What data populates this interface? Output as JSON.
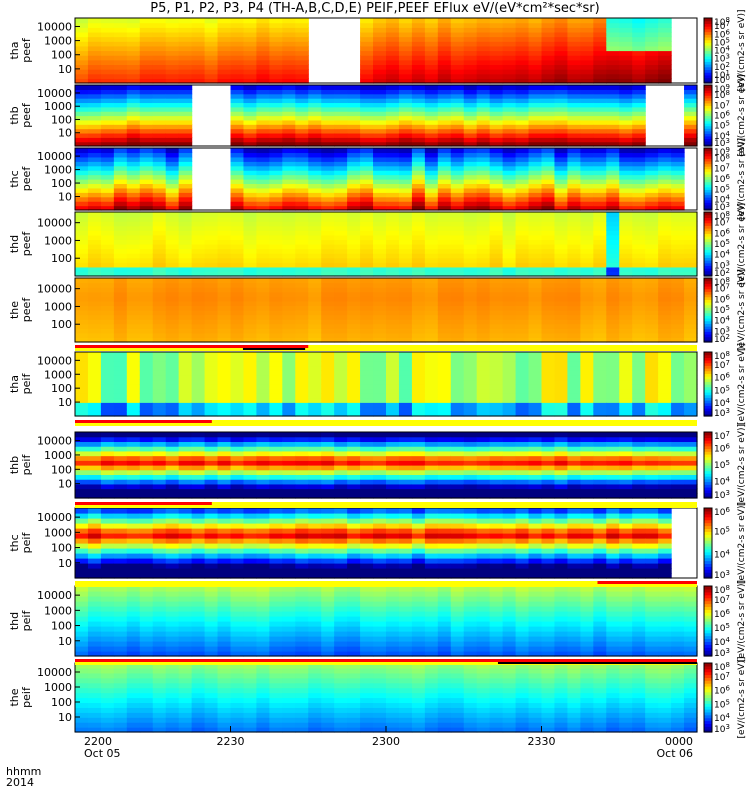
{
  "chart_data": {
    "type": "heatmap",
    "title": "P5, P1, P2, P3, P4 (TH-A,B,C,D,E) PEIF,PEEF EFlux eV/(eV*cm²*sec*sr)",
    "colorbar_label": "[eV/(cm2-s sr eV)]",
    "x_ticks": [
      "2200",
      "2230",
      "2300",
      "2330",
      "0000"
    ],
    "x_tick_dates": [
      "Oct 05",
      "",
      "",
      "",
      "Oct 06"
    ],
    "x_axis_label_line1": "hhmm",
    "x_axis_label_line2": "2014",
    "panels": [
      {
        "probe": "tha",
        "quantity": "peef",
        "yticks": [
          "10",
          "100",
          "1000",
          "10000"
        ],
        "cb_min_exp": 0,
        "cb_max_exp": 8,
        "gaps": [
          [
            0.37,
            0.45
          ],
          [
            0.96,
            1.0
          ]
        ],
        "mode": "elec_a"
      },
      {
        "probe": "thb",
        "quantity": "peef",
        "yticks": [
          "10",
          "100",
          "1000",
          "10000"
        ],
        "cb_min_exp": 3,
        "cb_max_exp": 9,
        "gaps": [
          [
            0.18,
            0.26
          ],
          [
            0.92,
            0.98
          ]
        ],
        "mode": "elec_b"
      },
      {
        "probe": "thc",
        "quantity": "peef",
        "yticks": [
          "10",
          "100",
          "1000",
          "10000"
        ],
        "cb_min_exp": 3,
        "cb_max_exp": 9,
        "gaps": [
          [
            0.18,
            0.26
          ],
          [
            0.98,
            1.0
          ]
        ],
        "mode": "elec_c"
      },
      {
        "probe": "thd",
        "quantity": "peef",
        "yticks": [
          "100",
          "1000",
          "10000"
        ],
        "cb_min_exp": 2,
        "cb_max_exp": 8,
        "gaps": [],
        "mode": "elec_d"
      },
      {
        "probe": "the",
        "quantity": "peef",
        "yticks": [
          "100",
          "1000",
          "10000"
        ],
        "cb_min_exp": 2,
        "cb_max_exp": 8,
        "gaps": [],
        "mode": "elec_e"
      },
      {
        "probe": "tha",
        "quantity": "peif",
        "yticks": [
          "10",
          "100",
          "1000",
          "10000"
        ],
        "cb_min_exp": 3,
        "cb_max_exp": 8,
        "gaps": [],
        "mode": "ion_a"
      },
      {
        "probe": "thb",
        "quantity": "peif",
        "yticks": [
          "10",
          "100",
          "1000",
          "10000"
        ],
        "cb_min_exp": 3,
        "cb_max_exp": 7,
        "gaps": [],
        "mode": "ion_b"
      },
      {
        "probe": "thc",
        "quantity": "peif",
        "yticks": [
          "10",
          "100",
          "1000",
          "10000"
        ],
        "cb_min_exp": 3,
        "cb_max_exp": 6,
        "gaps": [
          [
            0.96,
            1.0
          ]
        ],
        "mode": "ion_c"
      },
      {
        "probe": "thd",
        "quantity": "peif",
        "yticks": [
          "10",
          "100",
          "1000",
          "10000"
        ],
        "cb_min_exp": 3,
        "cb_max_exp": 8,
        "gaps": [],
        "mode": "ion_d"
      },
      {
        "probe": "the",
        "quantity": "peif",
        "yticks": [
          "10",
          "100",
          "1000",
          "10000"
        ],
        "cb_min_exp": 3,
        "cb_max_exp": 8,
        "gaps": [],
        "mode": "ion_e"
      }
    ],
    "mode_bars": [
      {
        "red": [
          0.0,
          0.375
        ],
        "dark": [
          0.27,
          0.37
        ]
      },
      {
        "red": [
          0.0,
          0.22
        ],
        "dark": []
      },
      {
        "red": [
          0.0,
          0.22
        ],
        "dark": []
      },
      {
        "red": [
          0.84,
          1.0
        ],
        "dark": []
      },
      {
        "red": [
          0.0,
          1.0
        ],
        "dark": [
          0.68,
          1.0
        ]
      }
    ]
  }
}
